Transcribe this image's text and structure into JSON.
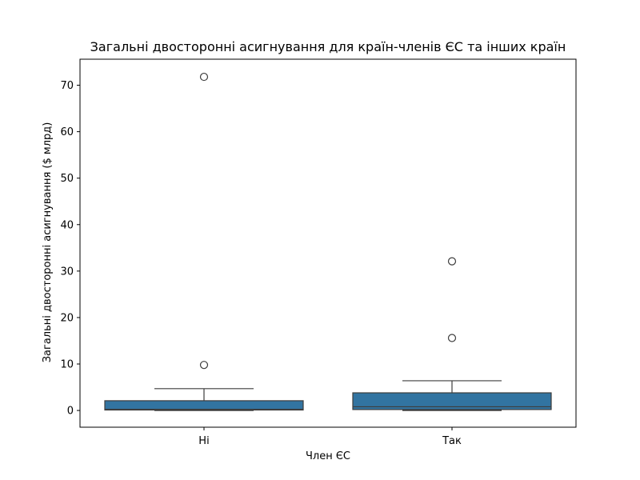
{
  "chart_data": {
    "type": "box",
    "title": "Загальні двосторонні асигнування для країн-членів ЄС та інших країн",
    "xlabel": "Член ЄС",
    "ylabel": "Загальні двосторонні асигнування ($ млрд)",
    "ylim": [
      -3.6,
      75.6
    ],
    "yticks": [
      0,
      10,
      20,
      30,
      40,
      50,
      60,
      70
    ],
    "grid": false,
    "colors": {
      "box": "#3274a1",
      "edge": "#3d3d3d",
      "outlier_edge": "#3d3d3d"
    },
    "categories": [
      "Ні",
      "Так"
    ],
    "boxes": [
      {
        "category": "Ні",
        "whislo": 0.0,
        "q1": 0.1,
        "med": 0.25,
        "q3": 2.1,
        "whishi": 4.7,
        "fliers": [
          9.8,
          71.8
        ]
      },
      {
        "category": "Так",
        "whislo": 0.0,
        "q1": 0.2,
        "med": 0.8,
        "q3": 3.8,
        "whishi": 6.4,
        "fliers": [
          15.6,
          32.1
        ]
      }
    ]
  }
}
